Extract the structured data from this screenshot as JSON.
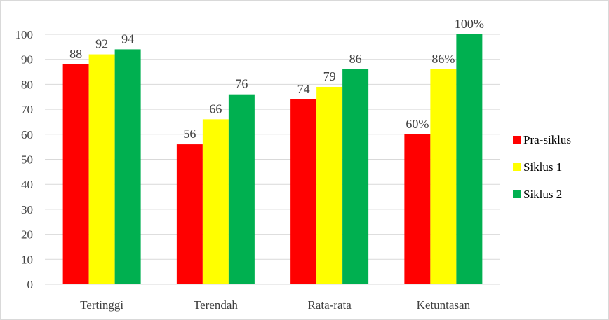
{
  "chart_data": {
    "type": "bar",
    "categories": [
      "Tertinggi",
      "Terendah",
      "Rata-rata",
      "Ketuntasan"
    ],
    "series": [
      {
        "name": "Pra-siklus",
        "color": "#ff0000",
        "values": [
          88,
          56,
          74,
          60
        ],
        "labels": [
          "88",
          "56",
          "74",
          "60%"
        ]
      },
      {
        "name": "Siklus 1",
        "color": "#ffff00",
        "values": [
          92,
          66,
          79,
          86
        ],
        "labels": [
          "92",
          "66",
          "79",
          "86%"
        ]
      },
      {
        "name": "Siklus 2",
        "color": "#00b050",
        "values": [
          94,
          76,
          86,
          100
        ],
        "labels": [
          "94",
          "76",
          "86",
          "100%"
        ]
      }
    ],
    "ylim": [
      0,
      100
    ],
    "ytick_step": 10,
    "grid": true,
    "legend_position": "right",
    "gridline_color": "#d9d9d9"
  }
}
